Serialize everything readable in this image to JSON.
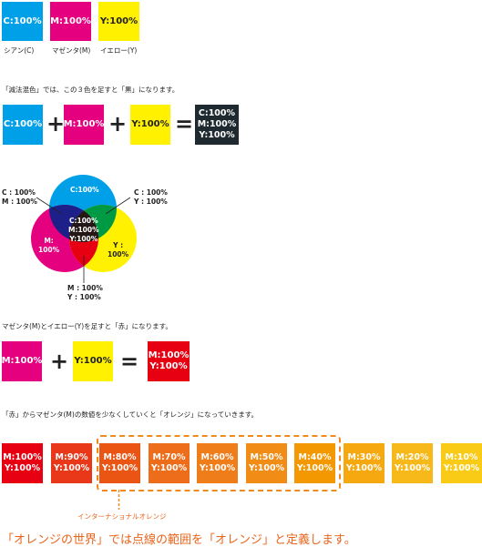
{
  "primaries": [
    {
      "label": "C:100%",
      "caption": "シアン(C)",
      "color": "#00a0e9",
      "text_color": "#ffffff"
    },
    {
      "label": "M:100%",
      "caption": "マゼンタ(M)",
      "color": "#e4007f",
      "text_color": "#ffffff"
    },
    {
      "label": "Y:100%",
      "caption": "イエロー(Y)",
      "color": "#fff100",
      "text_color": "#222222"
    }
  ],
  "subtractive": {
    "caption": "「減法混色」では、この３色を足すと「黒」になります。",
    "plus": "+",
    "equals": "=",
    "result": "C:100%\nM:100%\nY:100%",
    "result_color": "#1e2a2f"
  },
  "venn": {
    "circle_c": "C:100%",
    "circle_m": "M:\n100%",
    "circle_y": "Y :\n100%",
    "center": "C:100%\nM:100%\nY:100%",
    "callout_cm": "C : 100%\nM : 100%",
    "callout_cy": "C : 100%\nY : 100%",
    "callout_my": "M : 100%\nY : 100%"
  },
  "red_mix": {
    "caption": "マゼンタ(M)とイエロー(Y)を足すと「赤」になります。",
    "m_label": "M:100%",
    "y_label": "Y:100%",
    "plus": "+",
    "equals": "=",
    "result": "M:100%\nY:100%",
    "result_color": "#e60012"
  },
  "gradient": {
    "caption": "「赤」からマゼンタ(M)の数値を少なくしていくと「オレンジ」になっていきます。",
    "steps": [
      {
        "label": "M:100%\nY:100%",
        "color": "#e60012"
      },
      {
        "label": "M:90%\nY:100%",
        "color": "#e83819"
      },
      {
        "label": "M:80%\nY:100%",
        "color": "#ea5514"
      },
      {
        "label": "M:70%\nY:100%",
        "color": "#ed6d1a"
      },
      {
        "label": "M:60%\nY:100%",
        "color": "#ef7d1a"
      },
      {
        "label": "M:50%\nY:100%",
        "color": "#f18d17"
      },
      {
        "label": "M:40%\nY:100%",
        "color": "#f39800"
      },
      {
        "label": "M:30%\nY:100%",
        "color": "#f5a80f"
      },
      {
        "label": "M:20%\nY:100%",
        "color": "#f7b91a"
      },
      {
        "label": "M:10%\nY:100%",
        "color": "#facb16"
      }
    ],
    "highlight_label": "インターナショナルオレンジ",
    "highlight_color": "#f08a1c"
  },
  "footer": {
    "title": "「オレンジの世界」では点線の範囲を「オレンジ」と定義します。",
    "color": "#e9641b"
  }
}
